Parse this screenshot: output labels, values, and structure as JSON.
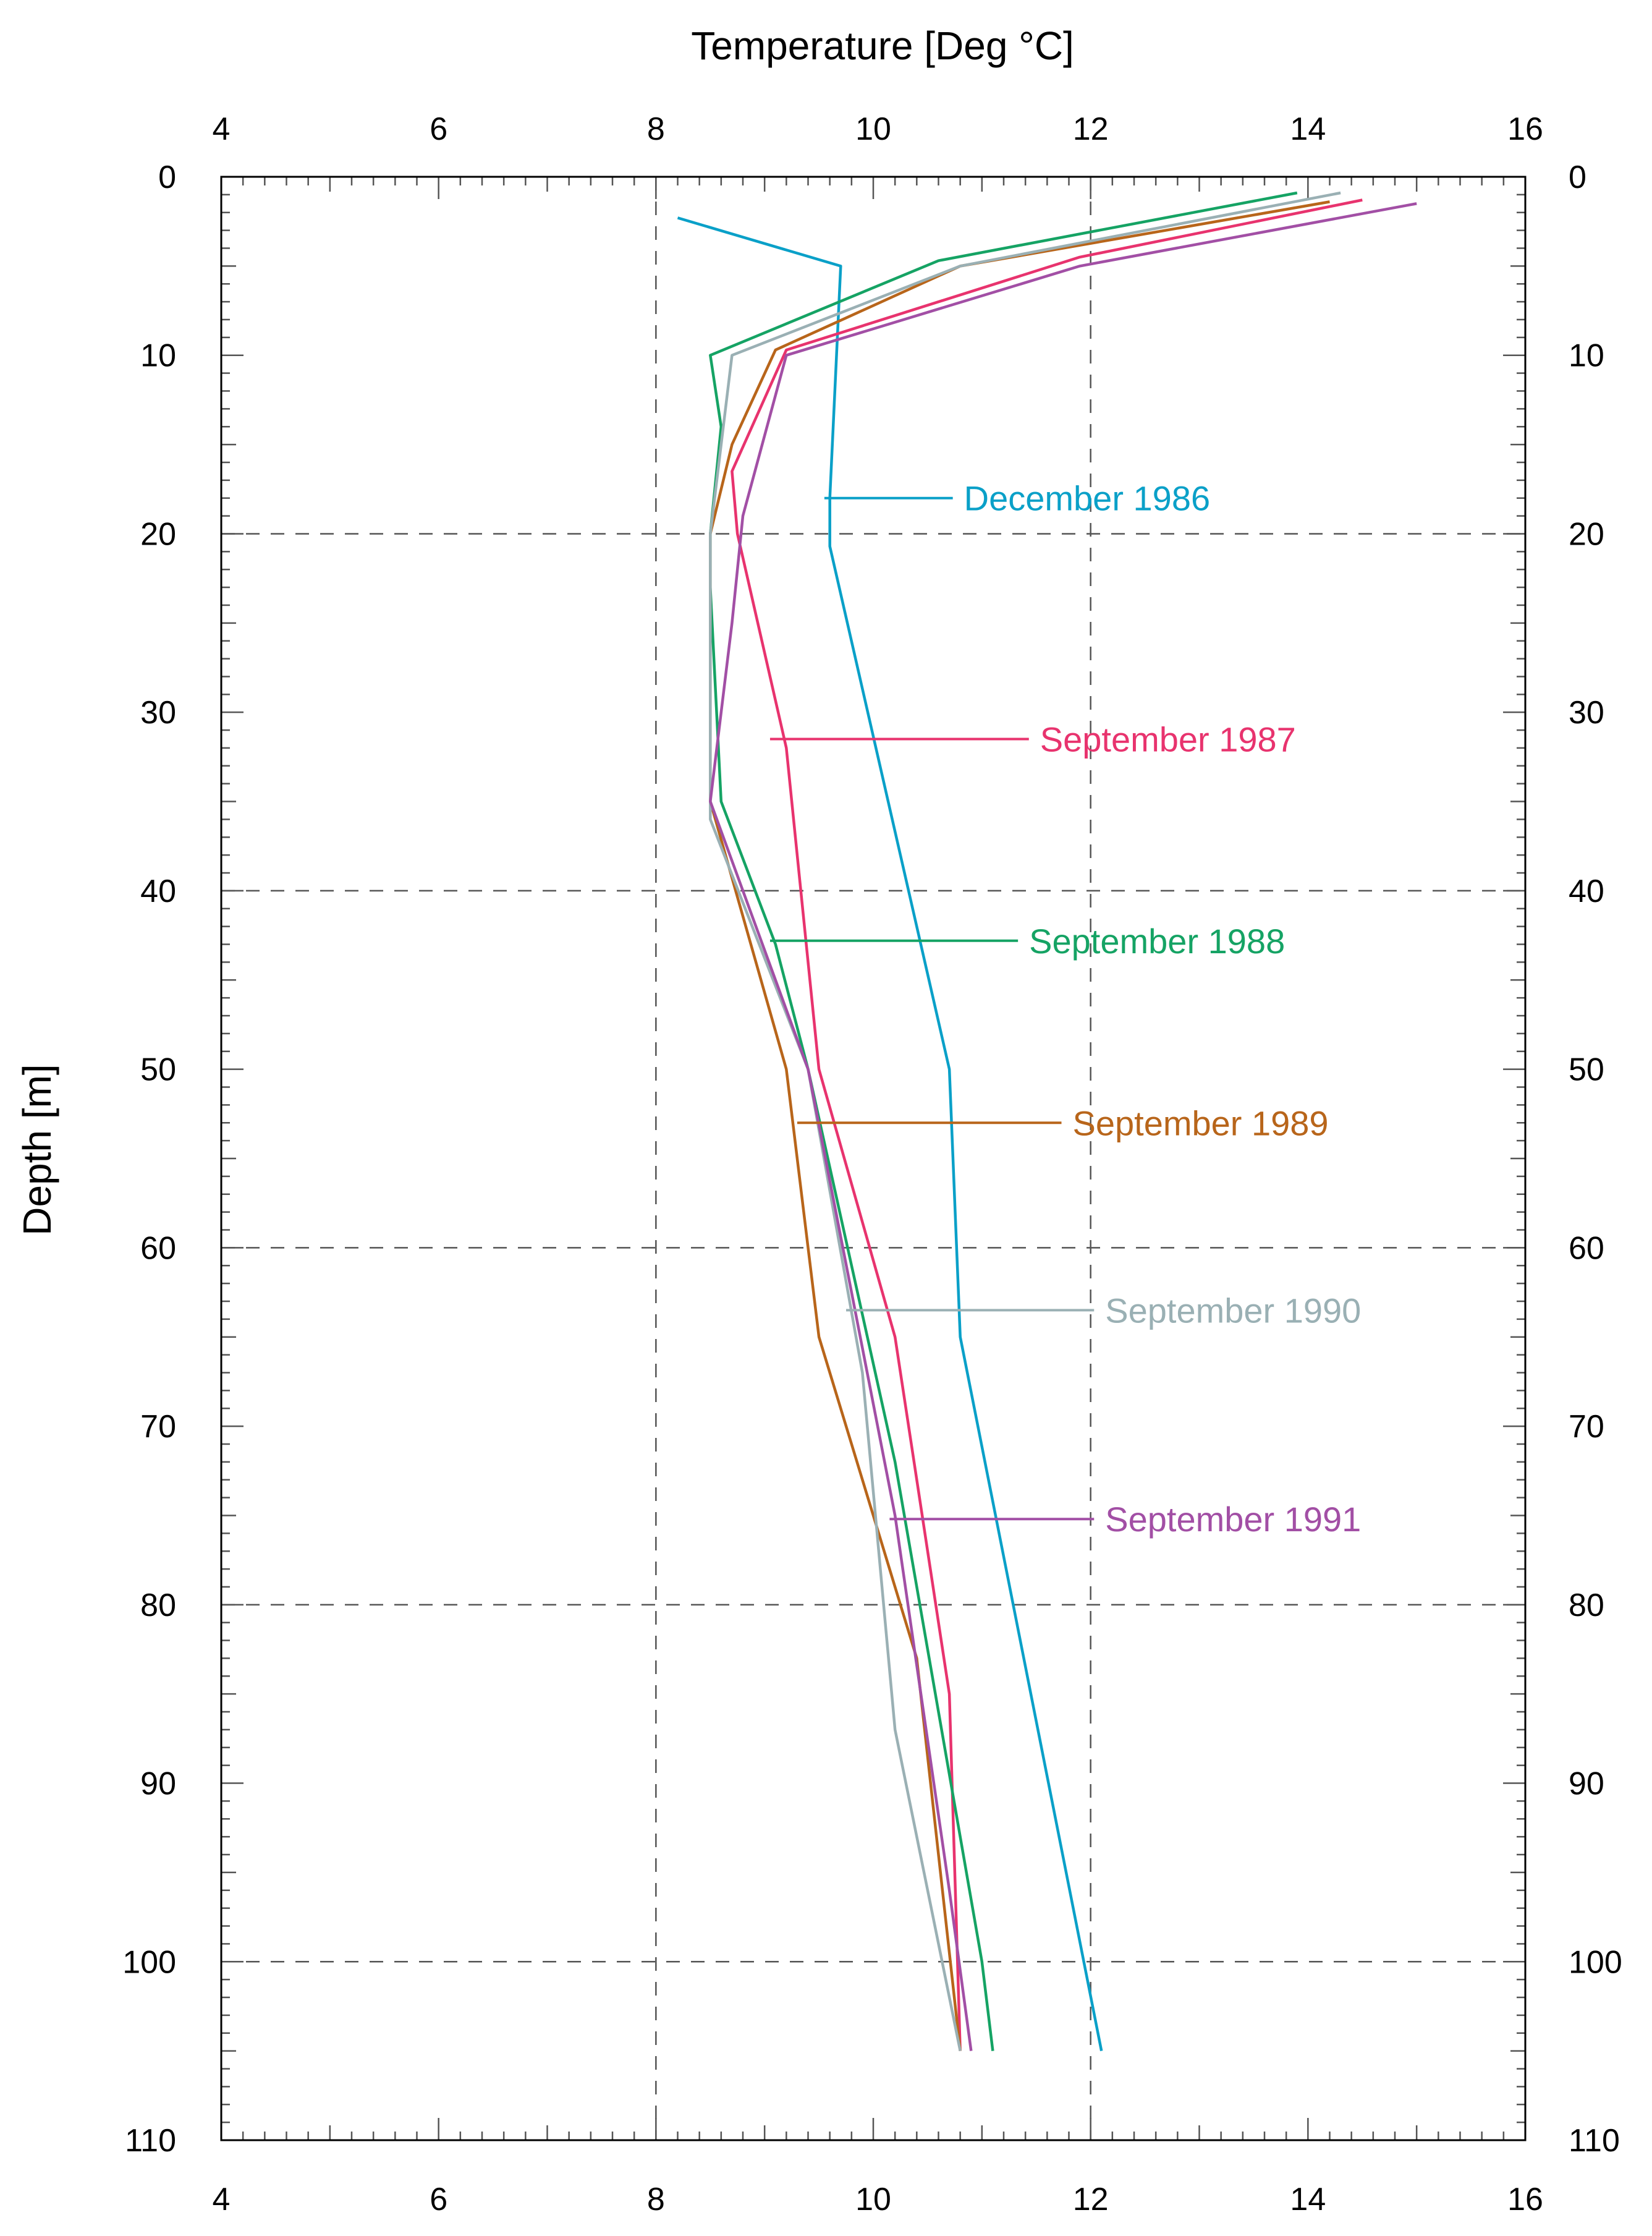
{
  "chart_data": {
    "type": "line",
    "orientation": "depth-profile",
    "xlabel": "Temperature [Deg °C]",
    "ylabel": "Depth [m]",
    "xlim": [
      4,
      16
    ],
    "ylim": [
      0,
      110
    ],
    "x_ticks": [
      4,
      6,
      8,
      10,
      12,
      14,
      16
    ],
    "y_ticks": [
      0,
      10,
      20,
      30,
      40,
      50,
      60,
      70,
      80,
      90,
      100,
      110
    ],
    "x_grid": [
      8,
      12
    ],
    "y_grid": [
      20,
      40,
      60,
      80,
      100
    ],
    "series": [
      {
        "name": "December 1986",
        "color": "#0aa0c8",
        "points": [
          [
            8.2,
            2.3
          ],
          [
            9.7,
            5
          ],
          [
            9.6,
            18
          ],
          [
            9.6,
            20.7
          ],
          [
            10.7,
            50
          ],
          [
            10.8,
            65
          ],
          [
            12.1,
            105
          ]
        ],
        "label_anchor": [
          9.55,
          18
        ],
        "label_text_x": 10.8
      },
      {
        "name": "September 1987",
        "color": "#e8336e",
        "points": [
          [
            14.5,
            1.3
          ],
          [
            11.9,
            4.5
          ],
          [
            9.2,
            9.7
          ],
          [
            8.7,
            16.5
          ],
          [
            8.75,
            20
          ],
          [
            9.2,
            32
          ],
          [
            9.5,
            50
          ],
          [
            10.2,
            65
          ],
          [
            10.7,
            85
          ],
          [
            10.8,
            105
          ]
        ],
        "label_anchor": [
          9.05,
          31.5
        ],
        "label_text_x": 11.5
      },
      {
        "name": "September 1988",
        "color": "#15a364",
        "points": [
          [
            13.9,
            0.9
          ],
          [
            10.6,
            4.7
          ],
          [
            8.5,
            10
          ],
          [
            8.6,
            14
          ],
          [
            8.5,
            20
          ],
          [
            8.5,
            23
          ],
          [
            8.6,
            35
          ],
          [
            9.1,
            43
          ],
          [
            9.4,
            50
          ],
          [
            10.2,
            72
          ],
          [
            11,
            100
          ],
          [
            11.1,
            105
          ]
        ],
        "label_anchor": [
          9.05,
          42.8
        ],
        "label_text_x": 11.4
      },
      {
        "name": "September 1989",
        "color": "#b8651a",
        "points": [
          [
            14.2,
            1.4
          ],
          [
            10.8,
            5
          ],
          [
            9.1,
            9.7
          ],
          [
            8.7,
            15
          ],
          [
            8.5,
            20
          ],
          [
            8.5,
            35
          ],
          [
            9.2,
            50
          ],
          [
            9.5,
            65
          ],
          [
            10.4,
            83
          ],
          [
            10.8,
            105
          ]
        ],
        "label_anchor": [
          9.3,
          53
        ],
        "label_text_x": 11.8
      },
      {
        "name": "September 1990",
        "color": "#9ab0b4",
        "points": [
          [
            14.3,
            0.9
          ],
          [
            10.8,
            5
          ],
          [
            8.7,
            10
          ],
          [
            8.5,
            20
          ],
          [
            8.5,
            36
          ],
          [
            9.4,
            50
          ],
          [
            9.9,
            67
          ],
          [
            10.2,
            87
          ],
          [
            10.8,
            105
          ]
        ],
        "label_anchor": [
          9.75,
          63.5
        ],
        "label_text_x": 12.1
      },
      {
        "name": "September 1991",
        "color": "#a24fa5",
        "points": [
          [
            15,
            1.5
          ],
          [
            11.9,
            5
          ],
          [
            9.2,
            10
          ],
          [
            8.8,
            19
          ],
          [
            8.7,
            25
          ],
          [
            8.5,
            35
          ],
          [
            9.4,
            50
          ],
          [
            10.2,
            75
          ],
          [
            10.7,
            96
          ],
          [
            10.9,
            105
          ]
        ],
        "label_anchor": [
          10.15,
          75.2
        ],
        "label_text_x": 12.1
      }
    ]
  }
}
